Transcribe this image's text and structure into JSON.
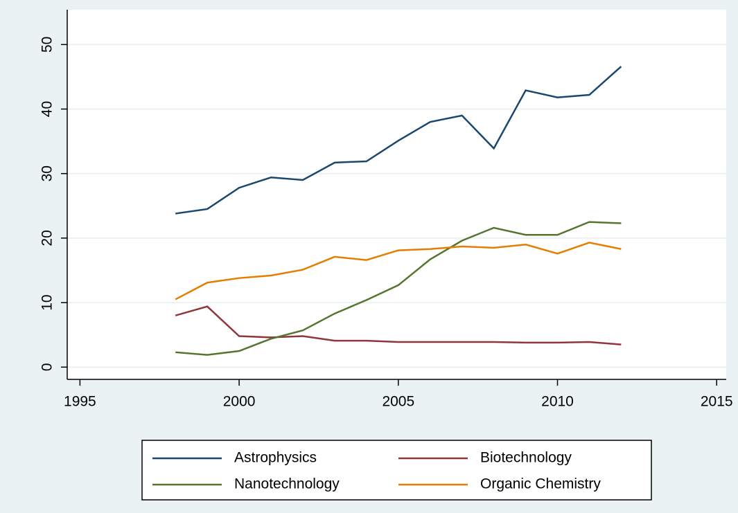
{
  "chart_data": {
    "type": "line",
    "x": [
      1998,
      1999,
      2000,
      2001,
      2002,
      2003,
      2004,
      2005,
      2006,
      2007,
      2008,
      2009,
      2010,
      2011,
      2012
    ],
    "series": [
      {
        "name": "Astrophysics",
        "color": "#1a476f",
        "values": [
          23.8,
          24.5,
          27.8,
          29.4,
          29.0,
          31.7,
          31.9,
          35.1,
          38.0,
          39.0,
          33.9,
          42.9,
          41.8,
          42.2,
          46.6
        ]
      },
      {
        "name": "Biotechnology",
        "color": "#90353b",
        "values": [
          8.0,
          9.4,
          4.8,
          4.6,
          4.8,
          4.1,
          4.1,
          3.9,
          3.9,
          3.9,
          3.9,
          3.8,
          3.8,
          3.9,
          3.5
        ]
      },
      {
        "name": "Nanotechnology",
        "color": "#55752f",
        "values": [
          2.3,
          1.9,
          2.5,
          4.4,
          5.7,
          8.3,
          10.4,
          12.7,
          16.7,
          19.6,
          21.6,
          20.5,
          20.5,
          22.5,
          22.3
        ]
      },
      {
        "name": "Organic Chemistry",
        "color": "#e37e00",
        "values": [
          10.5,
          13.1,
          13.8,
          14.2,
          15.1,
          17.1,
          16.6,
          18.1,
          18.3,
          18.7,
          18.5,
          19.0,
          17.6,
          19.3,
          18.3
        ]
      }
    ],
    "xlim": [
      1994.6,
      2015.3
    ],
    "xticks": [
      1995,
      2000,
      2005,
      2010,
      2015
    ],
    "ylim": [
      -1.9,
      55.4
    ],
    "yticks": [
      0,
      10,
      20,
      30,
      40,
      50
    ],
    "grid": true,
    "legend": "bottom"
  }
}
